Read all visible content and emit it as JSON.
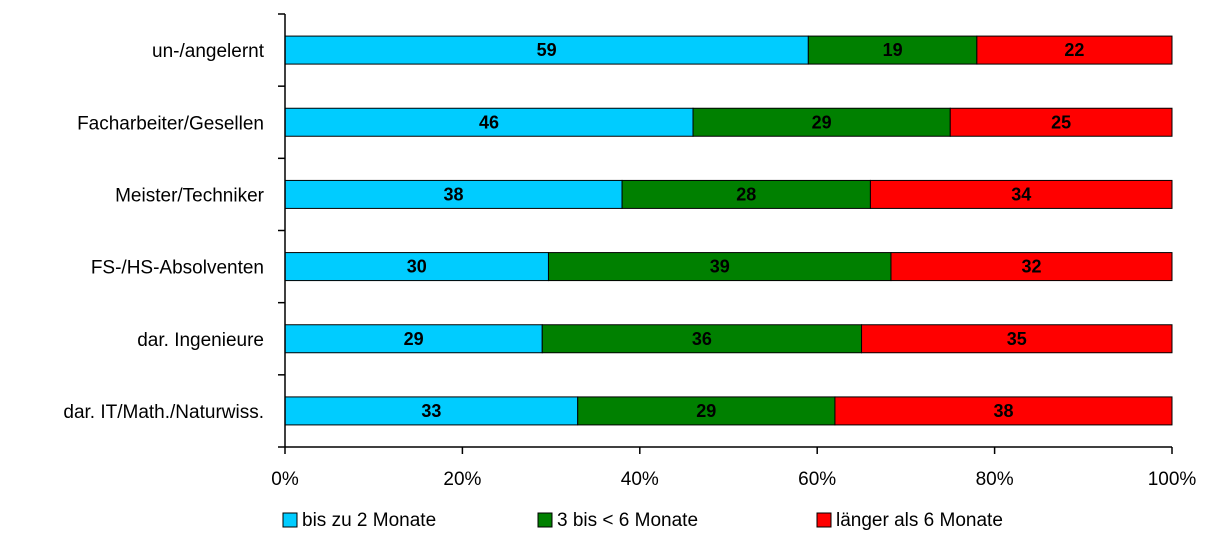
{
  "chart_data": {
    "type": "bar",
    "orientation": "horizontal",
    "stacked": true,
    "percent_stacked": true,
    "categories": [
      "un-/angelernt",
      "Facharbeiter/Gesellen",
      "Meister/Techniker",
      "FS-/HS-Absolventen",
      "dar. Ingenieure",
      "dar. IT/Math./Naturwiss."
    ],
    "series": [
      {
        "name": "bis zu 2 Monate",
        "color": "#00ccff",
        "values": [
          59,
          46,
          38,
          30,
          29,
          33
        ]
      },
      {
        "name": "3 bis < 6 Monate",
        "color": "#008000",
        "values": [
          19,
          29,
          28,
          39,
          36,
          29
        ]
      },
      {
        "name": "länger als 6 Monate",
        "color": "#ff0000",
        "values": [
          22,
          25,
          34,
          32,
          35,
          38
        ]
      }
    ],
    "x_ticks": [
      "0%",
      "20%",
      "40%",
      "60%",
      "80%",
      "100%"
    ],
    "xlim": [
      0,
      100
    ],
    "grid": false,
    "legend_position": "bottom"
  }
}
